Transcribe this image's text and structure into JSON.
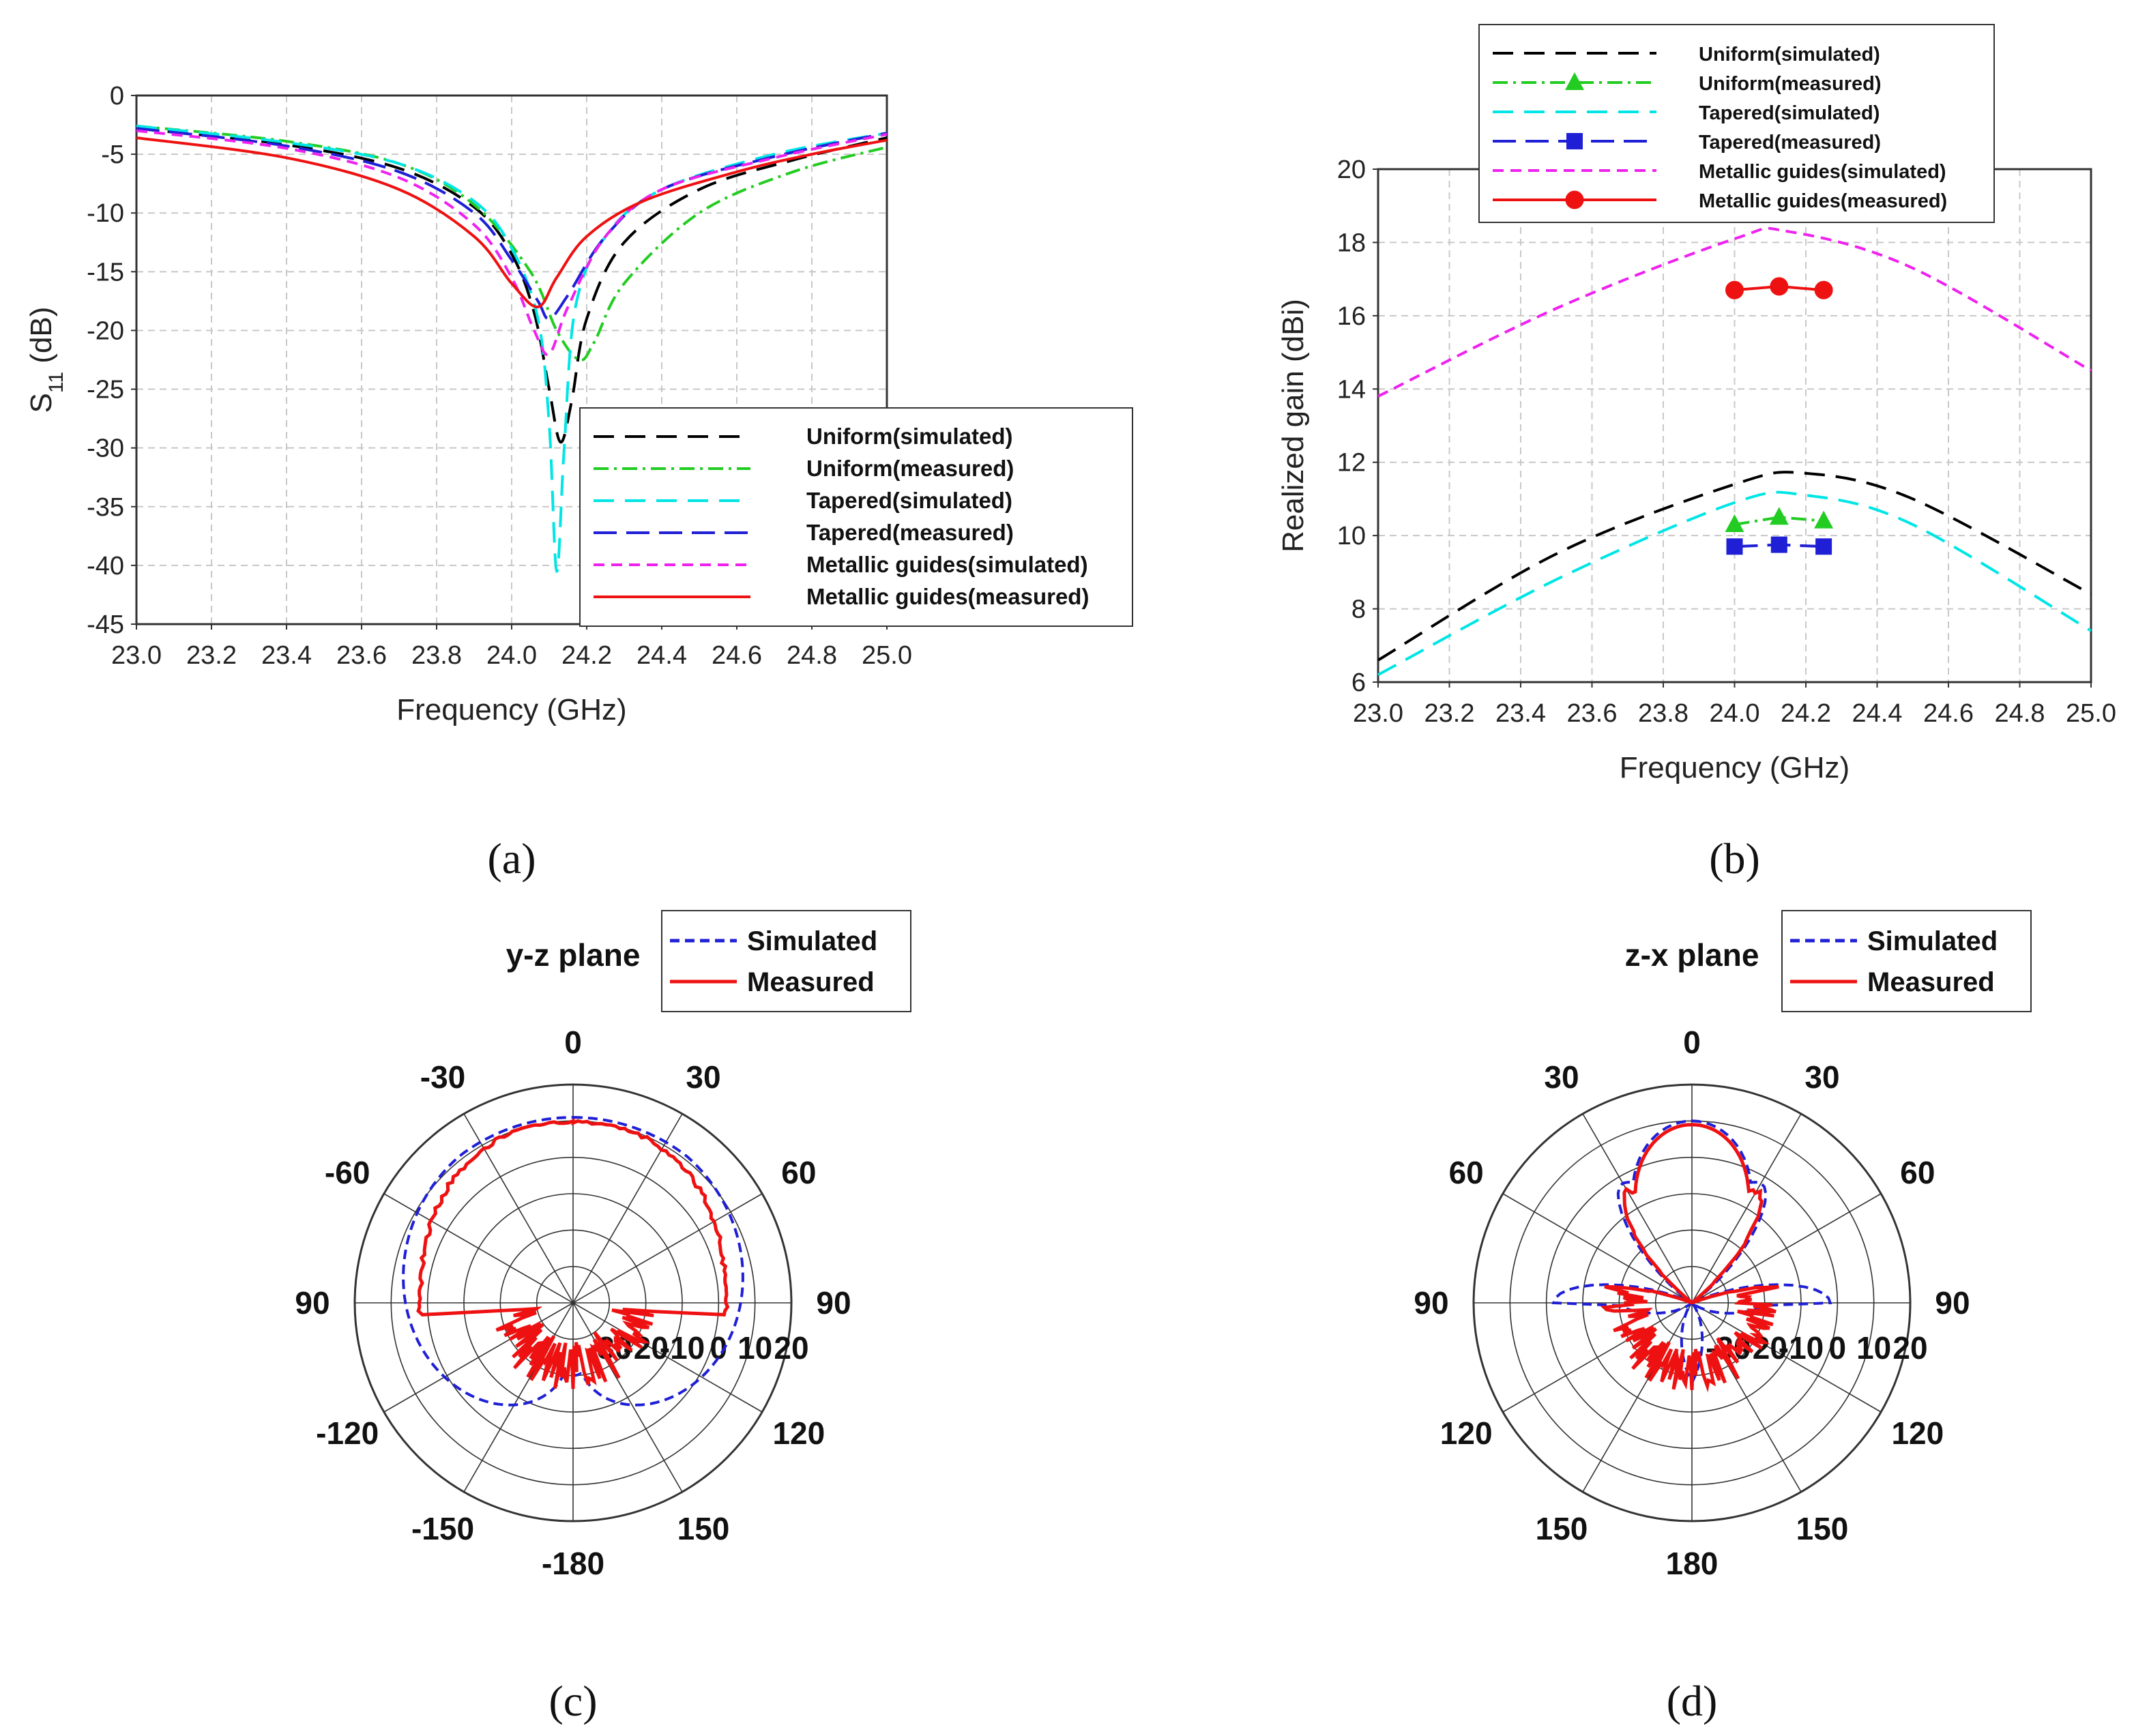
{
  "chart_data": [
    {
      "id": "a",
      "type": "line",
      "panel_label": "(a)",
      "xlabel": "Frequency (GHz)",
      "ylabel_main": "S",
      "ylabel_sub": "11",
      "ylabel_rest": " (dB)",
      "xlim": [
        23.0,
        25.0
      ],
      "ylim": [
        -45,
        0
      ],
      "xticks": [
        "23.0",
        "23.2",
        "23.4",
        "23.6",
        "23.8",
        "24.0",
        "24.2",
        "24.4",
        "24.6",
        "24.8",
        "25.0"
      ],
      "yticks": [
        "0",
        "-5",
        "-10",
        "-15",
        "-20",
        "-25",
        "-30",
        "-35",
        "-40",
        "-45"
      ],
      "series": [
        {
          "name": "Uniform(simulated)",
          "color": "#000000",
          "dash": "30 16",
          "x": [
            23.0,
            23.4,
            23.7,
            23.9,
            24.0,
            24.06,
            24.1,
            24.13,
            24.16,
            24.2,
            24.3,
            24.5,
            24.75,
            25.0
          ],
          "y": [
            -2.8,
            -4.2,
            -6.2,
            -9.5,
            -13.5,
            -18.5,
            -25,
            -29.5,
            -26,
            -19,
            -12.5,
            -8,
            -5.5,
            -3.6
          ]
        },
        {
          "name": "Uniform(measured)",
          "color": "#22cc22",
          "dash": "22 8 4 8",
          "x": [
            23.0,
            23.4,
            23.7,
            23.9,
            24.05,
            24.12,
            24.18,
            24.22,
            24.3,
            24.5,
            24.75,
            25.0
          ],
          "y": [
            -2.6,
            -3.9,
            -5.8,
            -9.3,
            -15,
            -20,
            -22.5,
            -21,
            -16,
            -10,
            -6.5,
            -4.4
          ]
        },
        {
          "name": "Tapered(simulated)",
          "color": "#00e5e5",
          "dash": "30 16",
          "x": [
            23.0,
            23.4,
            23.7,
            23.9,
            24.0,
            24.07,
            24.1,
            24.12,
            24.14,
            24.17,
            24.25,
            24.4,
            24.7,
            25.0
          ],
          "y": [
            -2.6,
            -4.0,
            -5.8,
            -9,
            -13,
            -19,
            -28,
            -40.5,
            -30,
            -18,
            -12,
            -8,
            -5,
            -3.2
          ]
        },
        {
          "name": "Tapered(measured)",
          "color": "#1f1fd6",
          "dash": "34 14",
          "x": [
            23.0,
            23.4,
            23.7,
            23.9,
            24.0,
            24.07,
            24.1,
            24.15,
            24.25,
            24.4,
            24.7,
            25.0
          ],
          "y": [
            -2.8,
            -4.3,
            -6.5,
            -10,
            -14,
            -17.5,
            -19,
            -17,
            -12,
            -8,
            -5.2,
            -3.2
          ]
        },
        {
          "name": "Metallic guides(simulated)",
          "color": "#ee22ee",
          "dash": "16 10",
          "x": [
            23.0,
            23.4,
            23.7,
            23.9,
            24.0,
            24.06,
            24.1,
            24.15,
            24.25,
            24.4,
            24.7,
            25.0
          ],
          "y": [
            -3.0,
            -4.5,
            -7,
            -11,
            -15.5,
            -20,
            -22,
            -18,
            -12,
            -8,
            -5.3,
            -3.3
          ]
        },
        {
          "name": "Metallic guides(measured)",
          "color": "#ee1111",
          "dash": "",
          "x": [
            23.0,
            23.4,
            23.7,
            23.9,
            24.0,
            24.07,
            24.12,
            24.2,
            24.35,
            24.6,
            24.8,
            25.0
          ],
          "y": [
            -3.6,
            -5.3,
            -8,
            -12,
            -16,
            -18,
            -15.5,
            -12,
            -9,
            -6.5,
            -5,
            -3.8
          ]
        }
      ]
    },
    {
      "id": "b",
      "type": "line",
      "panel_label": "(b)",
      "xlabel": "Frequency (GHz)",
      "ylabel": "Realized gain (dBi)",
      "xlim": [
        23.0,
        25.0
      ],
      "ylim": [
        6,
        20
      ],
      "xticks": [
        "23.0",
        "23.2",
        "23.4",
        "23.6",
        "23.8",
        "24.0",
        "24.2",
        "24.4",
        "24.6",
        "24.8",
        "25.0"
      ],
      "yticks": [
        "6",
        "8",
        "10",
        "12",
        "14",
        "16",
        "18",
        "20"
      ],
      "series": [
        {
          "name": "Uniform(simulated)",
          "color": "#000000",
          "dash": "30 16",
          "marker": "",
          "x": [
            23.0,
            23.5,
            24.0,
            24.2,
            24.5,
            25.0
          ],
          "y": [
            6.6,
            9.5,
            11.4,
            11.7,
            11.0,
            8.4
          ]
        },
        {
          "name": "Uniform(measured)",
          "color": "#22cc22",
          "dash": "22 8 4 8",
          "marker": "triangle",
          "x": [
            24.0,
            24.125,
            24.25
          ],
          "y": [
            10.3,
            10.5,
            10.4
          ]
        },
        {
          "name": "Tapered(simulated)",
          "color": "#00e5e5",
          "dash": "30 16",
          "marker": "",
          "x": [
            23.0,
            23.5,
            24.0,
            24.2,
            24.5,
            25.0
          ],
          "y": [
            6.2,
            8.8,
            10.9,
            11.1,
            10.3,
            7.4
          ]
        },
        {
          "name": "Tapered(measured)",
          "color": "#1f1fd6",
          "dash": "34 14",
          "marker": "square",
          "x": [
            24.0,
            24.125,
            24.25
          ],
          "y": [
            9.7,
            9.75,
            9.7
          ]
        },
        {
          "name": "Metallic guides(simulated)",
          "color": "#ee22ee",
          "dash": "16 10",
          "marker": "",
          "x": [
            23.0,
            23.5,
            24.0,
            24.15,
            24.5,
            25.0
          ],
          "y": [
            13.8,
            16.2,
            18.1,
            18.3,
            17.3,
            14.5
          ]
        },
        {
          "name": "Metallic guides(measured)",
          "color": "#ee1111",
          "dash": "",
          "marker": "circle",
          "x": [
            24.0,
            24.125,
            24.25
          ],
          "y": [
            16.7,
            16.8,
            16.7
          ]
        }
      ]
    },
    {
      "id": "c",
      "type": "polar",
      "panel_label": "(c)",
      "plane_title": "y-z plane",
      "angle_labels": [
        "0",
        "30",
        "60",
        "90",
        "120",
        "150",
        "-180",
        "-150",
        "-120",
        "90",
        "-60",
        "-30"
      ],
      "radial_labels": [
        "-30",
        "-20",
        "-10",
        "0",
        "10",
        "20"
      ],
      "rlim": [
        -40,
        20
      ],
      "series": [
        {
          "name": "Simulated",
          "color": "#1f1fd6",
          "dash": "14 8",
          "pattern": "yz_sim"
        },
        {
          "name": "Measured",
          "color": "#ee1111",
          "dash": "",
          "pattern": "yz_meas"
        }
      ]
    },
    {
      "id": "d",
      "type": "polar",
      "panel_label": "(d)",
      "plane_title": "z-x plane",
      "angle_labels": [
        "0",
        "30",
        "60",
        "90",
        "120",
        "150",
        "180",
        "150",
        "120",
        "90",
        "60",
        "30"
      ],
      "radial_labels": [
        "-30",
        "-20",
        "-10",
        "0",
        "10",
        "20"
      ],
      "rlim": [
        -40,
        20
      ],
      "series": [
        {
          "name": "Simulated",
          "color": "#1f1fd6",
          "dash": "14 8",
          "pattern": "zx_sim"
        },
        {
          "name": "Measured",
          "color": "#ee1111",
          "dash": "",
          "pattern": "zx_meas"
        }
      ]
    }
  ]
}
